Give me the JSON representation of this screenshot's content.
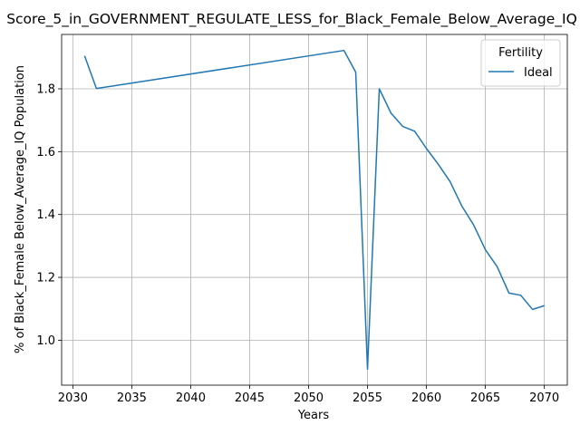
{
  "chart_data": {
    "type": "line",
    "title": "Score_5_in_GOVERNMENT_REGULATE_LESS_for_Black_Female_Below_Average_IQ",
    "xlabel": "Years",
    "ylabel": "% of Black_Female Below_Average_IQ Population",
    "xlim": [
      2029.05,
      2071.95
    ],
    "ylim": [
      0.857,
      1.973
    ],
    "xticks": [
      2030,
      2035,
      2040,
      2045,
      2050,
      2055,
      2060,
      2065,
      2070
    ],
    "yticks": [
      1.0,
      1.2,
      1.4,
      1.6,
      1.8
    ],
    "ytick_labels": [
      "1.0",
      "1.2",
      "1.4",
      "1.6",
      "1.8"
    ],
    "grid": true,
    "legend": {
      "title": "Fertility",
      "placement": "top-right"
    },
    "series": [
      {
        "name": "Ideal",
        "color": "#1f77b4",
        "x": [
          2031,
          2032,
          2053,
          2054,
          2055,
          2056,
          2057,
          2058,
          2059,
          2060,
          2061,
          2062,
          2063,
          2064,
          2065,
          2066,
          2067,
          2068,
          2069,
          2070
        ],
        "y": [
          1.905,
          1.801,
          1.922,
          1.853,
          0.908,
          1.8,
          1.722,
          1.68,
          1.665,
          1.61,
          1.56,
          1.505,
          1.427,
          1.367,
          1.288,
          1.234,
          1.15,
          1.143,
          1.098,
          1.11
        ]
      }
    ]
  }
}
